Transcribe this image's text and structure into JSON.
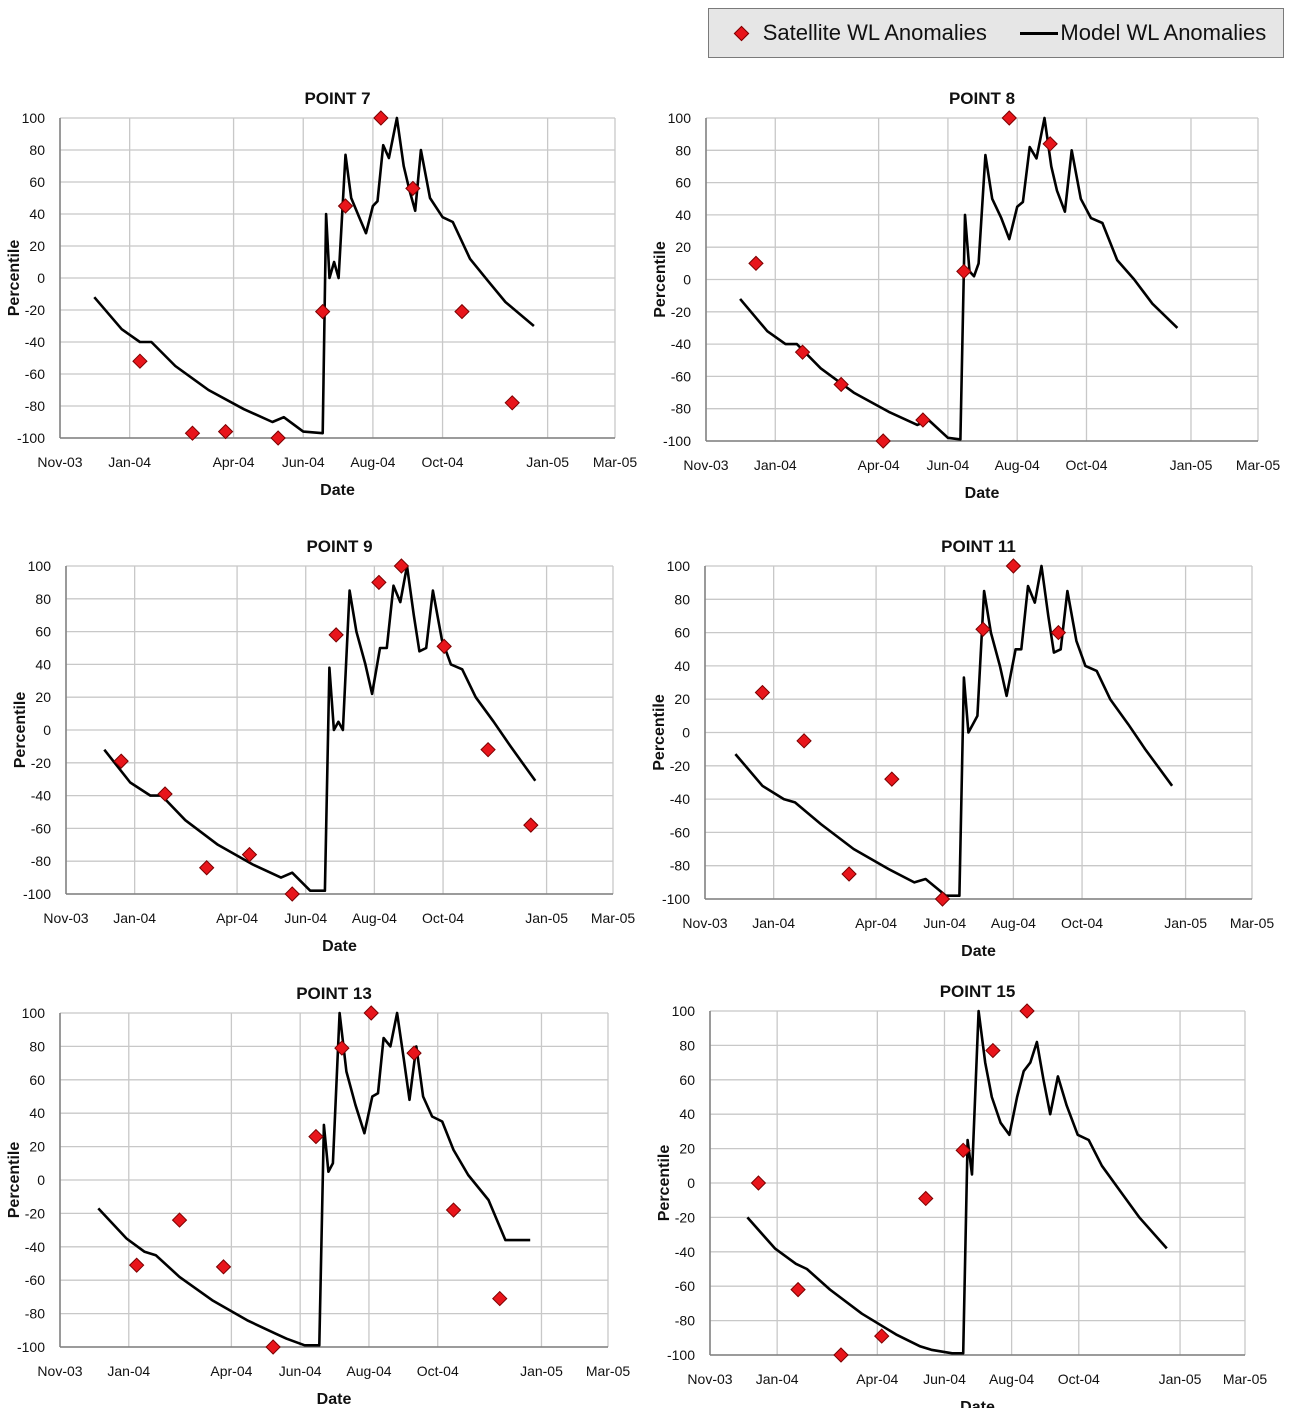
{
  "legend": {
    "satellite_label": "Satellite WL Anomalies",
    "model_label": "Model WL Anomalies"
  },
  "colors": {
    "satellite": "#e8151b",
    "model": "#000000",
    "grid": "#c8c8c8"
  },
  "chart_data": [
    {
      "type": "scatter",
      "title": "POINT 7",
      "xlabel": "Date",
      "ylabel": "Percentile",
      "xlim": [
        "2003-11-01",
        "2005-03-01"
      ],
      "ylim": [
        -100,
        100
      ],
      "x_ticks": [
        "Nov-03",
        "Jan-04",
        "Apr-04",
        "Jun-04",
        "Aug-04",
        "Oct-04",
        "Jan-05",
        "Mar-05"
      ],
      "y_ticks": [
        "100",
        "80",
        "60",
        "40",
        "20",
        "0",
        "-20",
        "-40",
        "-60",
        "-80",
        "-100"
      ],
      "grid": true,
      "legend_position": "top-right",
      "series": [
        {
          "name": "Satellite WL Anomalies",
          "type": "scatter",
          "x": [
            "2004-01-10",
            "2004-02-25",
            "2004-03-25",
            "2004-05-10",
            "2004-06-18",
            "2004-07-08",
            "2004-08-08",
            "2004-09-05",
            "2004-10-18",
            "2004-12-01"
          ],
          "y": [
            -52,
            -97,
            -96,
            -100,
            -21,
            45,
            100,
            56,
            -21,
            -78
          ]
        },
        {
          "name": "Model WL Anomalies",
          "type": "line",
          "x": [
            "2003-12-01",
            "2003-12-25",
            "2004-01-10",
            "2004-01-20",
            "2004-02-10",
            "2004-03-10",
            "2004-04-10",
            "2004-05-05",
            "2004-05-15",
            "2004-06-01",
            "2004-06-18",
            "2004-06-21",
            "2004-06-24",
            "2004-06-28",
            "2004-07-02",
            "2004-07-08",
            "2004-07-13",
            "2004-07-20",
            "2004-07-26",
            "2004-08-01",
            "2004-08-05",
            "2004-08-10",
            "2004-08-15",
            "2004-08-22",
            "2004-08-28",
            "2004-09-02",
            "2004-09-07",
            "2004-09-12",
            "2004-09-20",
            "2004-10-01",
            "2004-10-10",
            "2004-10-25",
            "2004-11-10",
            "2004-11-25",
            "2004-12-20"
          ],
          "y": [
            -12,
            -32,
            -40,
            -40,
            -55,
            -70,
            -82,
            -90,
            -87,
            -96,
            -97,
            40,
            0,
            10,
            0,
            77,
            50,
            38,
            28,
            45,
            48,
            83,
            75,
            100,
            70,
            55,
            42,
            80,
            50,
            38,
            35,
            12,
            -2,
            -15,
            -30
          ]
        }
      ]
    },
    {
      "type": "scatter",
      "title": "POINT 8",
      "xlabel": "Date",
      "ylabel": "Percentile",
      "xlim": [
        "2003-11-01",
        "2005-03-01"
      ],
      "ylim": [
        -100,
        100
      ],
      "x_ticks": [
        "Nov-03",
        "Jan-04",
        "Apr-04",
        "Jun-04",
        "Aug-04",
        "Oct-04",
        "Jan-05",
        "Mar-05"
      ],
      "y_ticks": [
        "100",
        "80",
        "60",
        "40",
        "20",
        "0",
        "-20",
        "-40",
        "-60",
        "-80",
        "-100"
      ],
      "grid": true,
      "legend_position": "top-right",
      "series": [
        {
          "name": "Satellite WL Anomalies",
          "type": "scatter",
          "x": [
            "2003-12-15",
            "2004-01-25",
            "2004-02-28",
            "2004-04-05",
            "2004-05-10",
            "2004-06-15",
            "2004-07-25",
            "2004-08-30"
          ],
          "y": [
            10,
            -45,
            -65,
            -100,
            -87,
            5,
            100,
            84
          ]
        },
        {
          "name": "Model WL Anomalies",
          "type": "line",
          "x": [
            "2003-12-01",
            "2003-12-25",
            "2004-01-10",
            "2004-01-20",
            "2004-02-10",
            "2004-03-10",
            "2004-04-10",
            "2004-05-05",
            "2004-05-15",
            "2004-06-01",
            "2004-06-12",
            "2004-06-16",
            "2004-06-20",
            "2004-06-24",
            "2004-06-28",
            "2004-07-04",
            "2004-07-10",
            "2004-07-18",
            "2004-07-25",
            "2004-08-01",
            "2004-08-06",
            "2004-08-12",
            "2004-08-18",
            "2004-08-25",
            "2004-08-31",
            "2004-09-05",
            "2004-09-12",
            "2004-09-18",
            "2004-09-26",
            "2004-10-05",
            "2004-10-15",
            "2004-10-28",
            "2004-11-12",
            "2004-11-28",
            "2004-12-20"
          ],
          "y": [
            -12,
            -32,
            -40,
            -40,
            -55,
            -70,
            -82,
            -90,
            -87,
            -98,
            -99,
            40,
            5,
            2,
            10,
            77,
            50,
            38,
            25,
            45,
            48,
            82,
            75,
            100,
            70,
            55,
            42,
            80,
            50,
            38,
            35,
            12,
            0,
            -15,
            -30
          ]
        }
      ]
    },
    {
      "type": "scatter",
      "title": "POINT 9",
      "xlabel": "Date",
      "ylabel": "Percentile",
      "xlim": [
        "2003-11-01",
        "2005-03-01"
      ],
      "ylim": [
        -100,
        100
      ],
      "x_ticks": [
        "Nov-03",
        "Jan-04",
        "Apr-04",
        "Jun-04",
        "Aug-04",
        "Oct-04",
        "Jan-05",
        "Mar-05"
      ],
      "y_ticks": [
        "100",
        "80",
        "60",
        "40",
        "20",
        "0",
        "-20",
        "-40",
        "-60",
        "-80",
        "-100"
      ],
      "grid": true,
      "legend_position": "top-right",
      "series": [
        {
          "name": "Satellite WL Anomalies",
          "type": "scatter",
          "x": [
            "2003-12-20",
            "2004-01-28",
            "2004-03-05",
            "2004-04-12",
            "2004-05-20",
            "2004-06-28",
            "2004-08-05",
            "2004-08-25",
            "2004-10-02",
            "2004-11-10",
            "2004-12-18"
          ],
          "y": [
            -19,
            -39,
            -84,
            -76,
            -100,
            58,
            90,
            100,
            51,
            -12,
            -58
          ]
        },
        {
          "name": "Model WL Anomalies",
          "type": "line",
          "x": [
            "2003-12-05",
            "2003-12-28",
            "2004-01-15",
            "2004-01-25",
            "2004-02-15",
            "2004-03-15",
            "2004-04-15",
            "2004-05-10",
            "2004-05-20",
            "2004-06-05",
            "2004-06-18",
            "2004-06-22",
            "2004-06-26",
            "2004-06-30",
            "2004-07-04",
            "2004-07-10",
            "2004-07-16",
            "2004-07-24",
            "2004-07-30",
            "2004-08-06",
            "2004-08-12",
            "2004-08-18",
            "2004-08-24",
            "2004-08-30",
            "2004-09-05",
            "2004-09-10",
            "2004-09-16",
            "2004-09-22",
            "2004-09-30",
            "2004-10-08",
            "2004-10-18",
            "2004-10-30",
            "2004-11-15",
            "2004-11-30",
            "2004-12-22"
          ],
          "y": [
            -12,
            -32,
            -40,
            -40,
            -55,
            -70,
            -82,
            -90,
            -87,
            -98,
            -98,
            38,
            0,
            5,
            0,
            85,
            60,
            40,
            22,
            50,
            50,
            88,
            78,
            100,
            70,
            48,
            50,
            85,
            55,
            40,
            37,
            20,
            5,
            -10,
            -31
          ]
        }
      ]
    },
    {
      "type": "scatter",
      "title": "POINT 11",
      "xlabel": "Date",
      "ylabel": "Percentile",
      "xlim": [
        "2003-11-01",
        "2005-03-01"
      ],
      "ylim": [
        -100,
        100
      ],
      "x_ticks": [
        "Nov-03",
        "Jan-04",
        "Apr-04",
        "Jun-04",
        "Aug-04",
        "Oct-04",
        "Jan-05",
        "Mar-05"
      ],
      "y_ticks": [
        "100",
        "80",
        "60",
        "40",
        "20",
        "0",
        "-20",
        "-40",
        "-60",
        "-80",
        "-100"
      ],
      "grid": true,
      "legend_position": "top-right",
      "series": [
        {
          "name": "Satellite WL Anomalies",
          "type": "scatter",
          "x": [
            "2003-12-22",
            "2004-01-28",
            "2004-03-08",
            "2004-04-15",
            "2004-05-30",
            "2004-07-05",
            "2004-08-01",
            "2004-09-10"
          ],
          "y": [
            24,
            -5,
            -85,
            -28,
            -100,
            62,
            100,
            60
          ]
        },
        {
          "name": "Model WL Anomalies",
          "type": "line",
          "x": [
            "2003-11-28",
            "2003-12-22",
            "2004-01-10",
            "2004-01-20",
            "2004-02-12",
            "2004-03-12",
            "2004-04-12",
            "2004-05-05",
            "2004-05-15",
            "2004-06-02",
            "2004-06-14",
            "2004-06-18",
            "2004-06-22",
            "2004-06-26",
            "2004-06-30",
            "2004-07-06",
            "2004-07-12",
            "2004-07-20",
            "2004-07-26",
            "2004-08-03",
            "2004-08-08",
            "2004-08-14",
            "2004-08-20",
            "2004-08-26",
            "2004-09-01",
            "2004-09-06",
            "2004-09-12",
            "2004-09-18",
            "2004-09-26",
            "2004-10-04",
            "2004-10-14",
            "2004-10-26",
            "2004-11-11",
            "2004-11-26",
            "2004-12-20"
          ],
          "y": [
            -13,
            -32,
            -40,
            -42,
            -55,
            -70,
            -82,
            -90,
            -88,
            -98,
            -98,
            33,
            0,
            5,
            10,
            85,
            60,
            40,
            22,
            50,
            50,
            88,
            78,
            100,
            70,
            48,
            50,
            85,
            55,
            40,
            37,
            20,
            5,
            -10,
            -32
          ]
        }
      ]
    },
    {
      "type": "scatter",
      "title": "POINT 13",
      "xlabel": "Date",
      "ylabel": "Percentile",
      "xlim": [
        "2003-11-01",
        "2005-03-01"
      ],
      "ylim": [
        -100,
        100
      ],
      "x_ticks": [
        "Nov-03",
        "Jan-04",
        "Apr-04",
        "Jun-04",
        "Aug-04",
        "Oct-04",
        "Jan-05",
        "Mar-05"
      ],
      "y_ticks": [
        "100",
        "80",
        "60",
        "40",
        "20",
        "0",
        "-20",
        "-40",
        "-60",
        "-80",
        "-100"
      ],
      "grid": true,
      "legend_position": "top-right",
      "series": [
        {
          "name": "Satellite WL Anomalies",
          "type": "scatter",
          "x": [
            "2004-01-08",
            "2004-02-15",
            "2004-03-25",
            "2004-05-08",
            "2004-06-15",
            "2004-07-08",
            "2004-08-03",
            "2004-09-10",
            "2004-10-15",
            "2004-11-25"
          ],
          "y": [
            -51,
            -24,
            -52,
            -100,
            26,
            79,
            100,
            76,
            -18,
            -71
          ]
        },
        {
          "name": "Model WL Anomalies",
          "type": "line",
          "x": [
            "2003-12-05",
            "2003-12-30",
            "2004-01-15",
            "2004-01-25",
            "2004-02-15",
            "2004-03-15",
            "2004-04-15",
            "2004-05-10",
            "2004-05-20",
            "2004-06-05",
            "2004-06-18",
            "2004-06-22",
            "2004-06-26",
            "2004-06-30",
            "2004-07-06",
            "2004-07-12",
            "2004-07-20",
            "2004-07-28",
            "2004-08-04",
            "2004-08-09",
            "2004-08-14",
            "2004-08-20",
            "2004-08-26",
            "2004-09-01",
            "2004-09-06",
            "2004-09-12",
            "2004-09-18",
            "2004-09-26",
            "2004-10-05",
            "2004-10-15",
            "2004-10-28",
            "2004-11-15",
            "2004-11-30",
            "2004-12-22"
          ],
          "y": [
            -17,
            -35,
            -43,
            -45,
            -58,
            -72,
            -84,
            -92,
            -95,
            -99,
            -99,
            33,
            5,
            10,
            100,
            65,
            45,
            28,
            50,
            52,
            85,
            80,
            100,
            72,
            48,
            80,
            50,
            38,
            35,
            18,
            3,
            -12,
            -36,
            -36
          ]
        }
      ]
    },
    {
      "type": "scatter",
      "title": "POINT 15",
      "xlabel": "Date",
      "ylabel": "Percentile",
      "xlim": [
        "2003-11-01",
        "2005-03-01"
      ],
      "ylim": [
        -100,
        100
      ],
      "x_ticks": [
        "Nov-03",
        "Jan-04",
        "Apr-04",
        "Jun-04",
        "Aug-04",
        "Oct-04",
        "Jan-05",
        "Mar-05"
      ],
      "y_ticks": [
        "100",
        "80",
        "60",
        "40",
        "20",
        "0",
        "-20",
        "-40",
        "-60",
        "-80",
        "-100"
      ],
      "grid": true,
      "legend_position": "top-right",
      "series": [
        {
          "name": "Satellite WL Anomalies",
          "type": "scatter",
          "x": [
            "2003-12-15",
            "2004-01-20",
            "2004-02-28",
            "2004-04-05",
            "2004-05-15",
            "2004-06-18",
            "2004-07-15",
            "2004-08-15"
          ],
          "y": [
            0,
            -62,
            -100,
            -89,
            -9,
            19,
            77,
            100
          ]
        },
        {
          "name": "Model WL Anomalies",
          "type": "line",
          "x": [
            "2003-12-05",
            "2003-12-30",
            "2004-01-18",
            "2004-01-28",
            "2004-02-18",
            "2004-03-18",
            "2004-04-18",
            "2004-05-10",
            "2004-05-20",
            "2004-06-08",
            "2004-06-18",
            "2004-06-22",
            "2004-06-26",
            "2004-07-02",
            "2004-07-08",
            "2004-07-14",
            "2004-07-22",
            "2004-07-30",
            "2004-08-06",
            "2004-08-12",
            "2004-08-18",
            "2004-08-24",
            "2004-08-30",
            "2004-09-05",
            "2004-09-12",
            "2004-09-20",
            "2004-09-30",
            "2004-10-10",
            "2004-10-22",
            "2004-11-08",
            "2004-11-25",
            "2004-12-20"
          ],
          "y": [
            -20,
            -38,
            -47,
            -50,
            -62,
            -76,
            -88,
            -95,
            -97,
            -99,
            -99,
            25,
            5,
            100,
            70,
            50,
            35,
            28,
            50,
            65,
            70,
            82,
            60,
            40,
            62,
            45,
            28,
            25,
            10,
            -5,
            -20,
            -38
          ]
        }
      ]
    }
  ]
}
